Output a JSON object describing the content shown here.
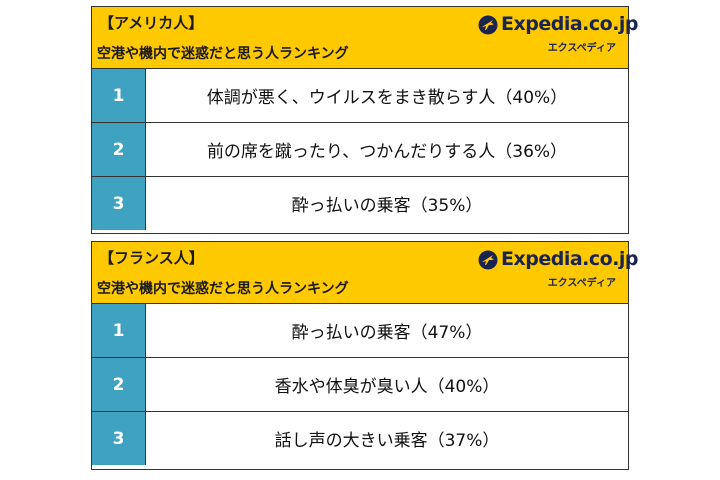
{
  "logo": {
    "brand": "Expedia.co.jp",
    "kana": "エクスペディア"
  },
  "colors": {
    "header_bg": "#ffc900",
    "rank_bg": "#3fa2c1",
    "logo_text": "#1a2450"
  },
  "panels": [
    {
      "nationality": "【アメリカ人】",
      "subtitle": "空港や機内で迷惑だと思う人ランキング",
      "rows": [
        {
          "rank": "1",
          "text": "体調が悪く、ウイルスをまき散らす人（40%）"
        },
        {
          "rank": "2",
          "text": "前の席を蹴ったり、つかんだりする人（36%）"
        },
        {
          "rank": "3",
          "text": "酔っ払いの乗客（35%）"
        }
      ]
    },
    {
      "nationality": "【フランス人】",
      "subtitle": "空港や機内で迷惑だと思う人ランキング",
      "rows": [
        {
          "rank": "1",
          "text": "酔っ払いの乗客（47%）"
        },
        {
          "rank": "2",
          "text": "香水や体臭が臭い人（40%）"
        },
        {
          "rank": "3",
          "text": "話し声の大きい乗客（37%）"
        }
      ]
    }
  ]
}
